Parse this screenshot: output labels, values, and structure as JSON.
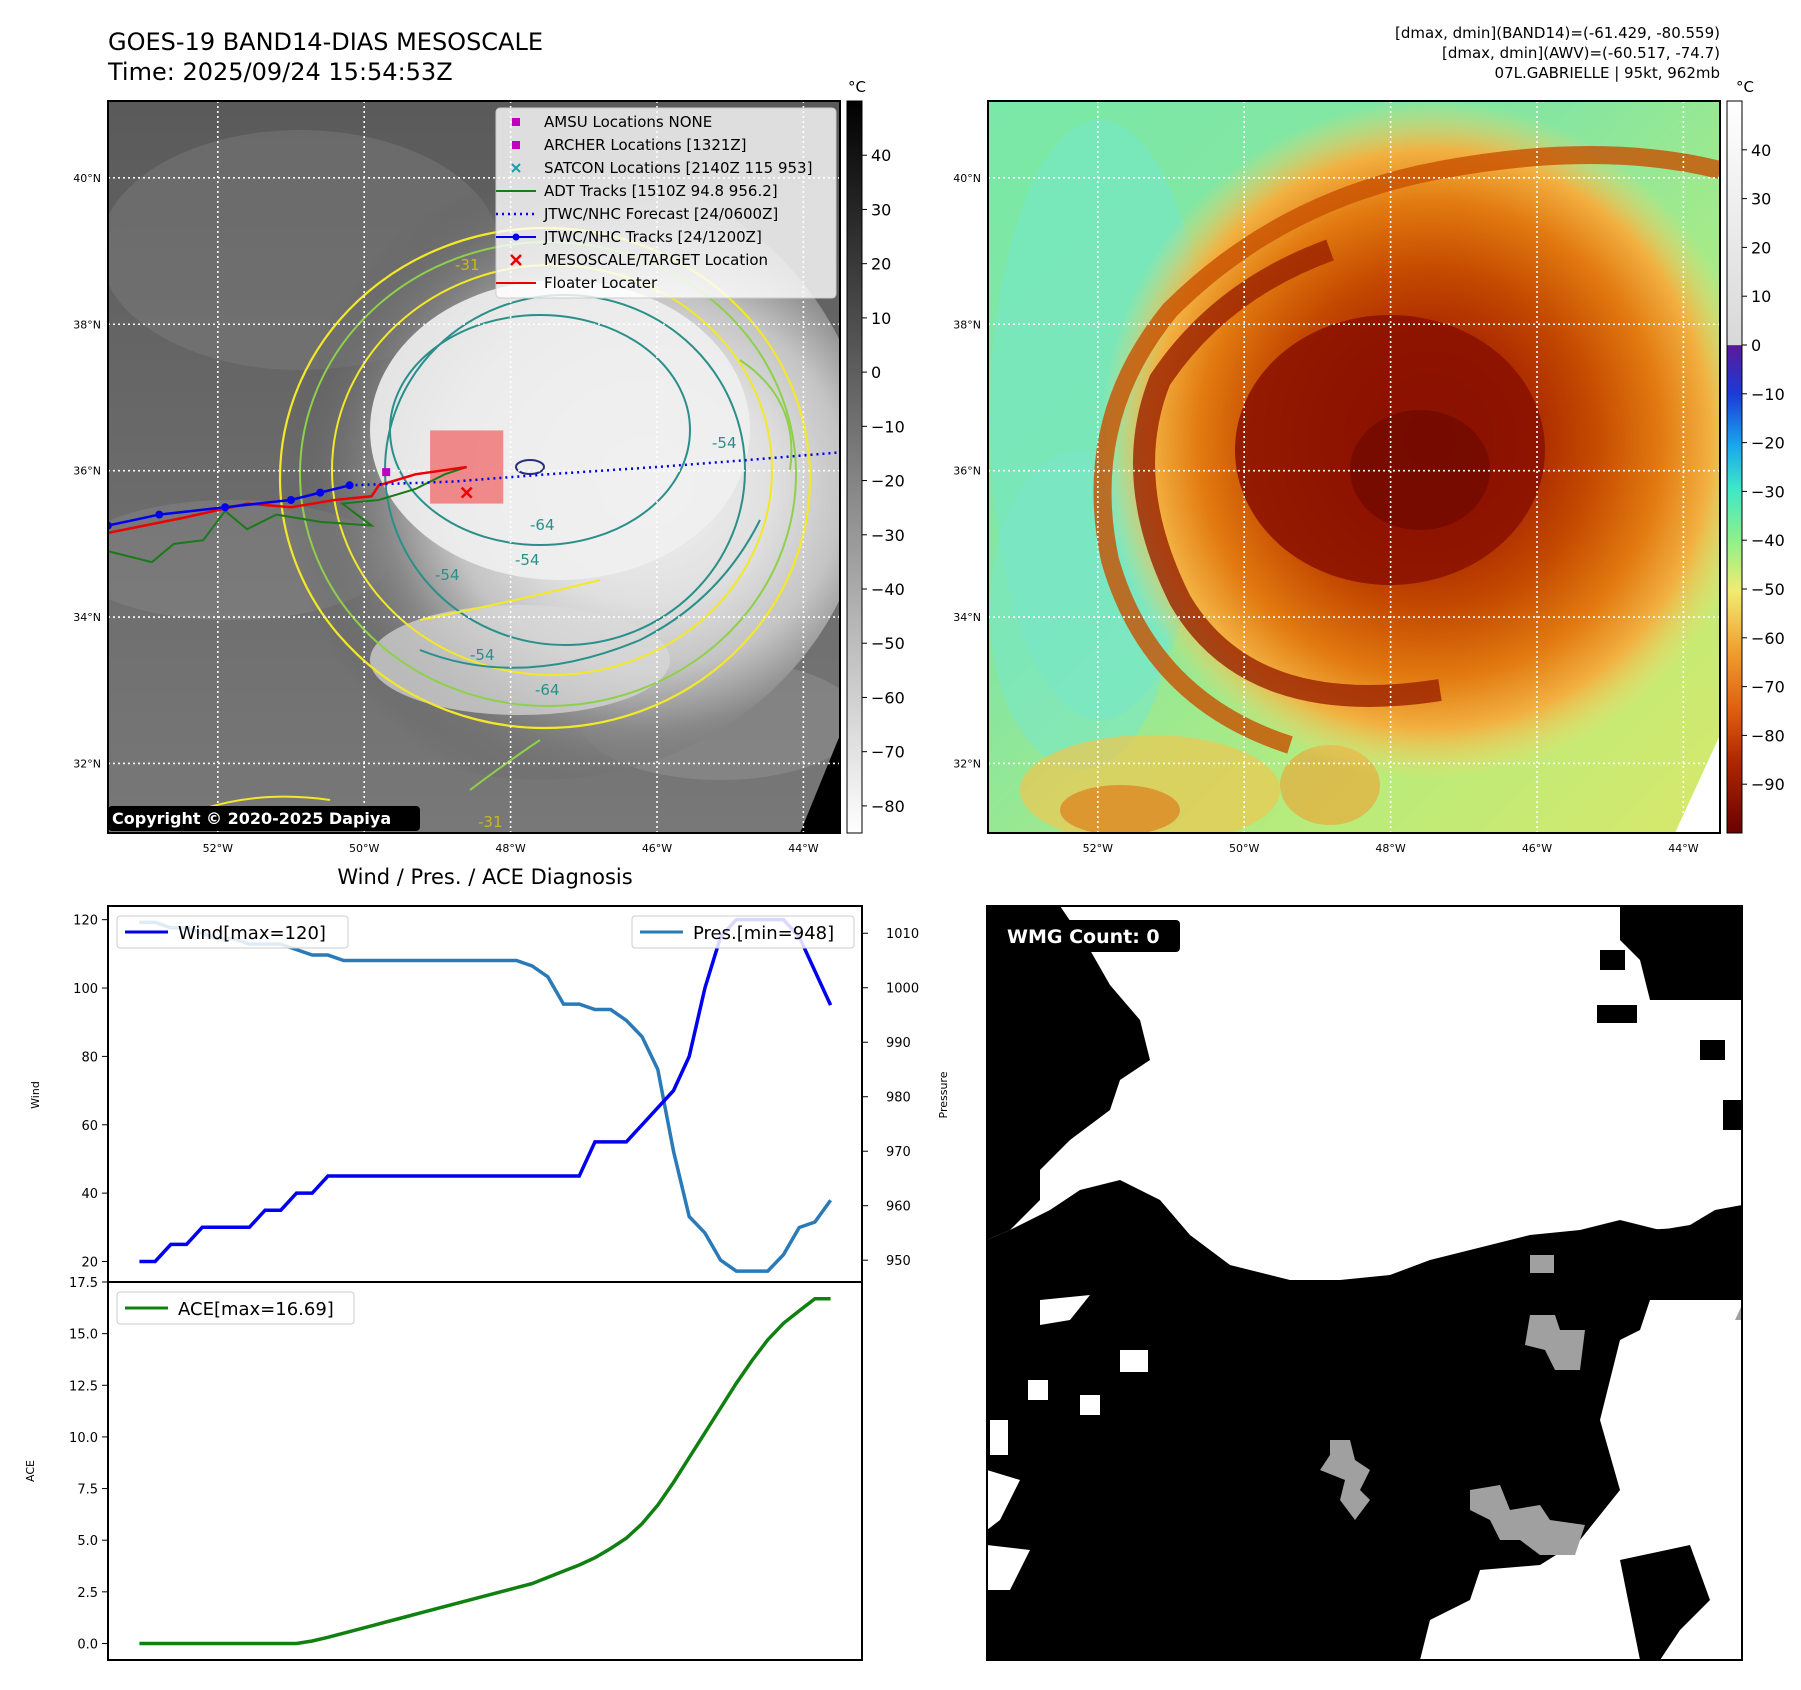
{
  "header": {
    "title_line1": "GOES-19 BAND14-DIAS MESOSCALE",
    "title_line2": "Time: 2025/09/24 15:54:53Z",
    "info_line1": "[dmax, dmin](BAND14)=(-61.429, -80.559)",
    "info_line2": "[dmax, dmin](AWV)=(-60.517, -74.7)",
    "info_line3": "07L.GABRIELLE | 95kt, 962mb"
  },
  "map_axes": {
    "lat_labels": [
      "40°N",
      "38°N",
      "36°N",
      "34°N",
      "32°N"
    ],
    "lat_values": [
      40,
      38,
      36,
      34,
      32
    ],
    "lon_labels": [
      "52°W",
      "50°W",
      "48°W",
      "46°W",
      "44°W"
    ],
    "lon_values": [
      52,
      50,
      48,
      46,
      44
    ],
    "extent": {
      "lon_west": 53.5,
      "lon_east": 43.5,
      "lat_south": 31.05,
      "lat_north": 41.05
    }
  },
  "ir_panel": {
    "legend": [
      {
        "label": "AMSU Locations NONE",
        "marker": "square",
        "color": "#c000c0"
      },
      {
        "label": "ARCHER Locations [1321Z]",
        "marker": "square",
        "color": "#c000c0"
      },
      {
        "label": "SATCON Locations [2140Z 115 953]",
        "marker": "x-small",
        "color": "#17a0b0"
      },
      {
        "label": "ADT Tracks [1510Z 94.8 956.2]",
        "marker": "line",
        "color": "#1a7a1a"
      },
      {
        "label": "JTWC/NHC Forecast [24/0600Z]",
        "marker": "dotted",
        "color": "#0000ee"
      },
      {
        "label": "JTWC/NHC Tracks [24/1200Z]",
        "marker": "line-dot",
        "color": "#0000ee"
      },
      {
        "label": "MESOSCALE/TARGET Location",
        "marker": "x",
        "color": "#ee0000"
      },
      {
        "label": "Floater Locater",
        "marker": "line",
        "color": "#ee0000"
      }
    ],
    "contour_labels": [
      "-31",
      "-54",
      "-64",
      "-54",
      "-54",
      "-64",
      "-54",
      "-31"
    ],
    "copyright": "Copyright © 2020-2025 Dapiya",
    "colorbar_unit": "°C",
    "colorbar_ticks": [
      "40",
      "30",
      "20",
      "10",
      "0",
      "−10",
      "−20",
      "−30",
      "−40",
      "−50",
      "−60",
      "−70",
      "−80"
    ],
    "colorbar_values": [
      40,
      30,
      20,
      10,
      0,
      -10,
      -20,
      -30,
      -40,
      -50,
      -60,
      -70,
      -80
    ],
    "colorbar_range": [
      -85,
      50
    ],
    "tracks": {
      "jtwc_best": [
        [
          53.5,
          35.25
        ],
        [
          52.8,
          35.4
        ],
        [
          51.9,
          35.5
        ],
        [
          51.0,
          35.6
        ],
        [
          50.6,
          35.7
        ],
        [
          50.2,
          35.8
        ]
      ],
      "jtwc_forecast": [
        [
          50.2,
          35.8
        ],
        [
          48.8,
          35.85
        ],
        [
          47.5,
          35.95
        ],
        [
          46.0,
          36.05
        ],
        [
          44.7,
          36.15
        ],
        [
          43.5,
          36.25
        ]
      ],
      "adt": [
        [
          53.5,
          34.9
        ],
        [
          52.9,
          34.75
        ],
        [
          52.6,
          35.0
        ],
        [
          52.2,
          35.05
        ],
        [
          51.9,
          35.45
        ],
        [
          51.6,
          35.2
        ],
        [
          51.2,
          35.4
        ],
        [
          50.6,
          35.3
        ],
        [
          49.9,
          35.25
        ],
        [
          50.3,
          35.55
        ],
        [
          49.8,
          35.6
        ],
        [
          49.3,
          35.75
        ],
        [
          48.9,
          35.95
        ],
        [
          48.6,
          36.05
        ]
      ],
      "floater": [
        [
          53.5,
          35.15
        ],
        [
          52.5,
          35.35
        ],
        [
          51.6,
          35.55
        ],
        [
          51.0,
          35.5
        ],
        [
          50.4,
          35.6
        ],
        [
          49.9,
          35.65
        ],
        [
          49.8,
          35.8
        ],
        [
          49.3,
          35.95
        ],
        [
          48.6,
          36.05
        ]
      ],
      "mesoscale_target": [
        48.6,
        35.7
      ],
      "archer": [
        49.7,
        35.98
      ],
      "floater_box": [
        [
          49.1,
          35.55
        ],
        [
          48.1,
          36.55
        ]
      ]
    }
  },
  "wv_panel": {
    "colorbar_unit": "°C",
    "colorbar_ticks": [
      "40",
      "30",
      "20",
      "10",
      "0",
      "−10",
      "−20",
      "−30",
      "−40",
      "−50",
      "−60",
      "−70",
      "−80",
      "−90"
    ],
    "colorbar_values": [
      40,
      30,
      20,
      10,
      0,
      -10,
      -20,
      -30,
      -40,
      -50,
      -60,
      -70,
      -80,
      -90
    ],
    "colorbar_range": [
      -100,
      50
    ]
  },
  "diag_panel": {
    "title": "Wind / Pres. / ACE Diagnosis",
    "wind_ylabel": "Wind",
    "pres_ylabel": "Pressure",
    "ace_ylabel": "ACE",
    "wind_legend": "Wind[max=120]",
    "pres_legend": "Pres.[min=948]",
    "ace_legend": "ACE[max=16.69]",
    "wind_ticks": [
      "120",
      "100",
      "80",
      "60",
      "40",
      "20"
    ],
    "pres_ticks": [
      "1010",
      "1000",
      "990",
      "980",
      "970",
      "960",
      "950"
    ],
    "ace_ticks": [
      "17.5",
      "15.0",
      "12.5",
      "10.0",
      "7.5",
      "5.0",
      "2.5",
      "0.0"
    ]
  },
  "chart_data": [
    {
      "type": "line",
      "title": "Wind / Pres. / ACE Diagnosis",
      "x": [
        0,
        1,
        2,
        3,
        4,
        5,
        6,
        7,
        8,
        9,
        10,
        11,
        12,
        13,
        14,
        15,
        16,
        17,
        18,
        19,
        20,
        21,
        22,
        23,
        24,
        25,
        26,
        27,
        28,
        29,
        30,
        31,
        32,
        33,
        34,
        35,
        36,
        37,
        38,
        39,
        40,
        41,
        42,
        43,
        44
      ],
      "series": [
        {
          "name": "Wind[max=120]",
          "axis": "left",
          "color": "#0000ee",
          "values": [
            20,
            20,
            25,
            25,
            30,
            30,
            30,
            30,
            35,
            35,
            40,
            40,
            45,
            45,
            45,
            45,
            45,
            45,
            45,
            45,
            45,
            45,
            45,
            45,
            45,
            45,
            45,
            45,
            45,
            55,
            55,
            55,
            60,
            65,
            70,
            80,
            100,
            115,
            120,
            120,
            120,
            120,
            115,
            105,
            95
          ]
        },
        {
          "name": "Pres.[min=948]",
          "axis": "right",
          "color": "#2a7ab8",
          "values": [
            1012,
            1012,
            1011,
            1011,
            1010,
            1009,
            1009,
            1008,
            1008,
            1008,
            1007,
            1006,
            1006,
            1005,
            1005,
            1005,
            1005,
            1005,
            1005,
            1005,
            1005,
            1005,
            1005,
            1005,
            1005,
            1004,
            1002,
            997,
            997,
            996,
            996,
            994,
            991,
            985,
            970,
            958,
            955,
            950,
            948,
            948,
            948,
            951,
            956,
            957,
            961
          ]
        }
      ],
      "ylabel": "Wind",
      "ylabel_right": "Pressure",
      "ylim": [
        14,
        124
      ],
      "ylim_right": [
        946,
        1015
      ],
      "xlim": [
        -2,
        46
      ]
    },
    {
      "type": "line",
      "series": [
        {
          "name": "ACE[max=16.69]",
          "color": "#108010",
          "values": [
            0,
            0,
            0,
            0,
            0,
            0,
            0,
            0,
            0,
            0,
            0,
            0.12,
            0.3,
            0.5,
            0.7,
            0.9,
            1.1,
            1.3,
            1.5,
            1.7,
            1.9,
            2.1,
            2.3,
            2.5,
            2.7,
            2.9,
            3.2,
            3.5,
            3.8,
            4.15,
            4.6,
            5.1,
            5.8,
            6.7,
            7.8,
            9.0,
            10.2,
            11.4,
            12.6,
            13.7,
            14.7,
            15.5,
            16.1,
            16.69,
            16.69
          ]
        }
      ],
      "x": [
        0,
        1,
        2,
        3,
        4,
        5,
        6,
        7,
        8,
        9,
        10,
        11,
        12,
        13,
        14,
        15,
        16,
        17,
        18,
        19,
        20,
        21,
        22,
        23,
        24,
        25,
        26,
        27,
        28,
        29,
        30,
        31,
        32,
        33,
        34,
        35,
        36,
        37,
        38,
        39,
        40,
        41,
        42,
        43,
        44
      ],
      "ylabel": "ACE",
      "ylim": [
        -0.8,
        17.5
      ],
      "xlim": [
        -2,
        46
      ]
    }
  ],
  "wmg_panel": {
    "label": "WMG Count: 0"
  },
  "colors": {
    "contour_yellow": "#f2e829",
    "contour_green": "#8ed04a",
    "contour_teal": "#2a8f8a",
    "contour_navy": "#2b2f7a",
    "legend_face": "#ffffff"
  }
}
